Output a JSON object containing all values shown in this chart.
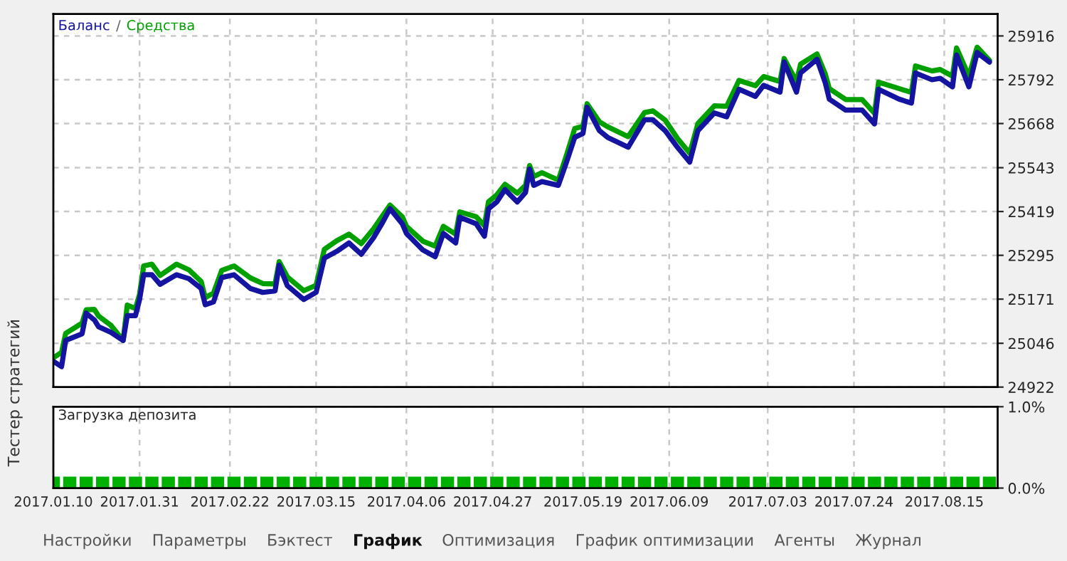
{
  "chart_data": [
    {
      "type": "line",
      "grid": true,
      "tick_labels": "y",
      "annotations": [
        "/"
      ],
      "xlim": [
        "2017-01-10",
        "2017-08-28"
      ],
      "xticks": [
        "2017-01-10",
        "2017-01-31",
        "2017-02-22",
        "2017-03-15",
        "2017-04-06",
        "2017-04-27",
        "2017-05-19",
        "2017-06-09",
        "2017-07-03",
        "2017-07-24",
        "2017-08-15"
      ],
      "ylim": [
        24922,
        25978
      ],
      "yticks": [
        24922,
        25046,
        25171,
        25295,
        25419,
        25543,
        25668,
        25792,
        25916
      ],
      "x": [
        "2017-01-10",
        "2017-01-12",
        "2017-01-13",
        "2017-01-17",
        "2017-01-18",
        "2017-01-20",
        "2017-01-21",
        "2017-01-24",
        "2017-01-27",
        "2017-01-28",
        "2017-01-30",
        "2017-01-31",
        "2017-02-01",
        "2017-02-03",
        "2017-02-05",
        "2017-02-09",
        "2017-02-12",
        "2017-02-15",
        "2017-02-16",
        "2017-02-18",
        "2017-02-20",
        "2017-02-23",
        "2017-02-27",
        "2017-03-02",
        "2017-03-05",
        "2017-03-06",
        "2017-03-08",
        "2017-03-12",
        "2017-03-15",
        "2017-03-17",
        "2017-03-20",
        "2017-03-23",
        "2017-03-26",
        "2017-03-29",
        "2017-03-31",
        "2017-04-02",
        "2017-04-05",
        "2017-04-06",
        "2017-04-10",
        "2017-04-13",
        "2017-04-15",
        "2017-04-18",
        "2017-04-19",
        "2017-04-23",
        "2017-04-25",
        "2017-04-26",
        "2017-04-28",
        "2017-04-30",
        "2017-05-03",
        "2017-05-05",
        "2017-05-06",
        "2017-05-07",
        "2017-05-09",
        "2017-05-13",
        "2017-05-15",
        "2017-05-17",
        "2017-05-19",
        "2017-05-20",
        "2017-05-23",
        "2017-05-25",
        "2017-05-30",
        "2017-06-03",
        "2017-06-05",
        "2017-06-08",
        "2017-06-11",
        "2017-06-14",
        "2017-06-16",
        "2017-06-20",
        "2017-06-23",
        "2017-06-26",
        "2017-06-30",
        "2017-07-02",
        "2017-07-06",
        "2017-07-07",
        "2017-07-10",
        "2017-07-11",
        "2017-07-15",
        "2017-07-17",
        "2017-07-18",
        "2017-07-22",
        "2017-07-26",
        "2017-07-29",
        "2017-07-30",
        "2017-08-04",
        "2017-08-07",
        "2017-08-08",
        "2017-08-12",
        "2017-08-14",
        "2017-08-17",
        "2017-08-18",
        "2017-08-21",
        "2017-08-23",
        "2017-08-26"
      ],
      "series": [
        {
          "name": "Средства",
          "color": "#00a000",
          "values": [
            25005,
            25020,
            25074,
            25103,
            25141,
            25142,
            25123,
            25097,
            25054,
            25154,
            25144,
            25185,
            25265,
            25270,
            25238,
            25270,
            25254,
            25221,
            25175,
            25188,
            25252,
            25265,
            25231,
            25215,
            25214,
            25277,
            25234,
            25195,
            25210,
            25312,
            25336,
            25355,
            25328,
            25370,
            25404,
            25437,
            25404,
            25377,
            25335,
            25321,
            25377,
            25355,
            25418,
            25404,
            25379,
            25447,
            25466,
            25496,
            25471,
            25493,
            25549,
            25518,
            25529,
            25508,
            25579,
            25654,
            25660,
            25724,
            25673,
            25659,
            25631,
            25699,
            25704,
            25678,
            25626,
            25584,
            25668,
            25718,
            25717,
            25790,
            25775,
            25801,
            25787,
            25852,
            25787,
            25836,
            25865,
            25809,
            25767,
            25736,
            25736,
            25697,
            25785,
            25767,
            25756,
            25831,
            25817,
            25821,
            25802,
            25882,
            25802,
            25884,
            25847
          ]
        },
        {
          "name": "Баланс",
          "color": "#1414a0",
          "values": [
            24995,
            24980,
            25054,
            25073,
            25131,
            25112,
            25093,
            25077,
            25054,
            25124,
            25124,
            25170,
            25240,
            25240,
            25213,
            25240,
            25229,
            25201,
            25155,
            25163,
            25232,
            25240,
            25201,
            25190,
            25194,
            25267,
            25209,
            25170,
            25190,
            25287,
            25306,
            25330,
            25298,
            25345,
            25384,
            25427,
            25384,
            25357,
            25310,
            25291,
            25357,
            25330,
            25403,
            25384,
            25349,
            25427,
            25446,
            25481,
            25446,
            25473,
            25539,
            25493,
            25504,
            25493,
            25559,
            25629,
            25640,
            25714,
            25648,
            25629,
            25601,
            25679,
            25679,
            25648,
            25601,
            25559,
            25648,
            25698,
            25687,
            25765,
            25745,
            25776,
            25757,
            25842,
            25757,
            25811,
            25850,
            25784,
            25737,
            25706,
            25706,
            25667,
            25765,
            25737,
            25726,
            25811,
            25792,
            25796,
            25772,
            25862,
            25772,
            25869,
            25842
          ]
        }
      ]
    },
    {
      "type": "bar",
      "title": "Загрузка депозита",
      "grid": true,
      "xlim": [
        "2017-01-10",
        "2017-08-28"
      ],
      "xticks": [
        {
          "value": "2017-01-10",
          "label": "2017.01.10"
        },
        {
          "value": "2017-01-31",
          "label": "2017.01.31"
        },
        {
          "value": "2017-02-22",
          "label": "2017.02.22"
        },
        {
          "value": "2017-03-15",
          "label": "2017.03.15"
        },
        {
          "value": "2017-04-06",
          "label": "2017.04.06"
        },
        {
          "value": "2017-04-27",
          "label": "2017.04.27"
        },
        {
          "value": "2017-05-19",
          "label": "2017.05.19"
        },
        {
          "value": "2017-06-09",
          "label": "2017.06.09"
        },
        {
          "value": "2017-07-03",
          "label": "2017.07.03"
        },
        {
          "value": "2017-07-24",
          "label": "2017.07.24"
        },
        {
          "value": "2017-08-15",
          "label": "2017.08.15"
        }
      ],
      "ylim": [
        0,
        1
      ],
      "yticks": [
        {
          "value": 0,
          "label": "0.0%"
        },
        {
          "value": 1,
          "label": "1.0%"
        }
      ],
      "x": [
        "2017-01-10",
        "2017-01-14",
        "2017-01-18",
        "2017-01-22",
        "2017-01-26",
        "2017-01-30",
        "2017-02-03",
        "2017-02-07",
        "2017-02-11",
        "2017-02-15",
        "2017-02-19",
        "2017-02-23",
        "2017-02-27",
        "2017-03-03",
        "2017-03-07",
        "2017-03-11",
        "2017-03-15",
        "2017-03-19",
        "2017-03-23",
        "2017-03-27",
        "2017-03-31",
        "2017-04-04",
        "2017-04-08",
        "2017-04-12",
        "2017-04-16",
        "2017-04-20",
        "2017-04-24",
        "2017-04-28",
        "2017-05-02",
        "2017-05-06",
        "2017-05-10",
        "2017-05-14",
        "2017-05-18",
        "2017-05-22",
        "2017-05-26",
        "2017-05-30",
        "2017-06-03",
        "2017-06-07",
        "2017-06-11",
        "2017-06-15",
        "2017-06-19",
        "2017-06-23",
        "2017-06-27",
        "2017-07-01",
        "2017-07-05",
        "2017-07-09",
        "2017-07-13",
        "2017-07-17",
        "2017-07-21",
        "2017-07-25",
        "2017-07-29",
        "2017-08-02",
        "2017-08-06",
        "2017-08-10",
        "2017-08-14",
        "2017-08-18",
        "2017-08-22",
        "2017-08-26"
      ],
      "color": "#00b000",
      "values": [
        0.14,
        0.14,
        0.14,
        0.14,
        0.14,
        0.14,
        0.14,
        0.14,
        0.14,
        0.14,
        0.14,
        0.14,
        0.14,
        0.14,
        0.14,
        0.14,
        0.14,
        0.14,
        0.14,
        0.14,
        0.14,
        0.14,
        0.14,
        0.14,
        0.14,
        0.14,
        0.14,
        0.14,
        0.14,
        0.14,
        0.14,
        0.14,
        0.14,
        0.14,
        0.14,
        0.14,
        0.14,
        0.14,
        0.14,
        0.14,
        0.14,
        0.14,
        0.14,
        0.14,
        0.14,
        0.14,
        0.14,
        0.14,
        0.14,
        0.14,
        0.14,
        0.14,
        0.14,
        0.14,
        0.14,
        0.14,
        0.14,
        0.14
      ],
      "annotations": [
        "Тестер стратегий",
        "Настройки",
        "Параметры",
        "Бэктест",
        "График",
        "Оптимизация",
        "График оптимизации",
        "Агенты",
        "Журнал"
      ]
    }
  ]
}
